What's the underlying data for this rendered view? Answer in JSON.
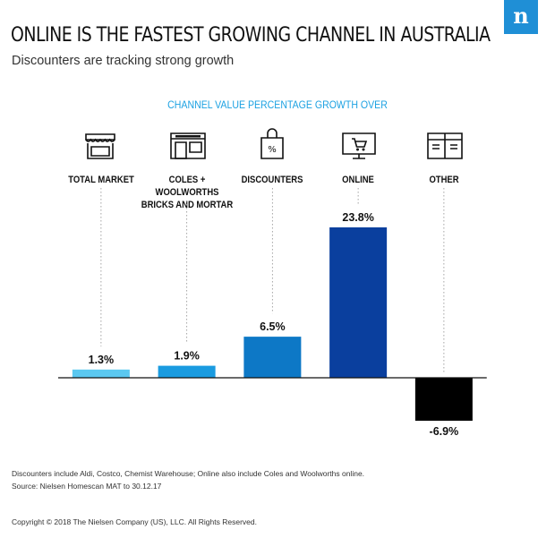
{
  "header": {
    "title": "ONLINE IS THE FASTEST GROWING CHANNEL IN AUSTRALIA",
    "subtitle": "Discounters are tracking strong growth",
    "logo_letter": "n",
    "logo_color": "#1f8fd6"
  },
  "chart_data": {
    "type": "bar",
    "title": "CHANNEL VALUE PERCENTAGE GROWTH OVER",
    "categories": [
      {
        "label_lines": [
          "TOTAL MARKET"
        ],
        "icon": "storefront-icon"
      },
      {
        "label_lines": [
          "COLES + WOOLWORTHS",
          "BRICKS AND MORTAR"
        ],
        "icon": "supermarket-icon"
      },
      {
        "label_lines": [
          "DISCOUNTERS"
        ],
        "icon": "shopping-bag-percent-icon"
      },
      {
        "label_lines": [
          "ONLINE"
        ],
        "icon": "monitor-cart-icon"
      },
      {
        "label_lines": [
          "OTHER"
        ],
        "icon": "shop-window-icon"
      }
    ],
    "values": [
      1.3,
      1.9,
      6.5,
      23.8,
      -6.9
    ],
    "value_labels": [
      "1.3%",
      "1.9%",
      "6.5%",
      "23.8%",
      "-6.9%"
    ],
    "colors": [
      "#5bc8f0",
      "#1a9be0",
      "#0d78c6",
      "#0a3f9e",
      "#000000"
    ],
    "ylim": [
      -6.9,
      23.8
    ],
    "grid": false,
    "legend": "none"
  },
  "footer": {
    "notes": [
      "Discounters include Aldi, Costco, Chemist Warehouse; Online also include Coles and Woolworths online.",
      "Source: Nielsen Homescan MAT to 30.12.17"
    ],
    "copyright": "Copyright © 2018 The Nielsen Company (US), LLC. All Rights Reserved."
  }
}
